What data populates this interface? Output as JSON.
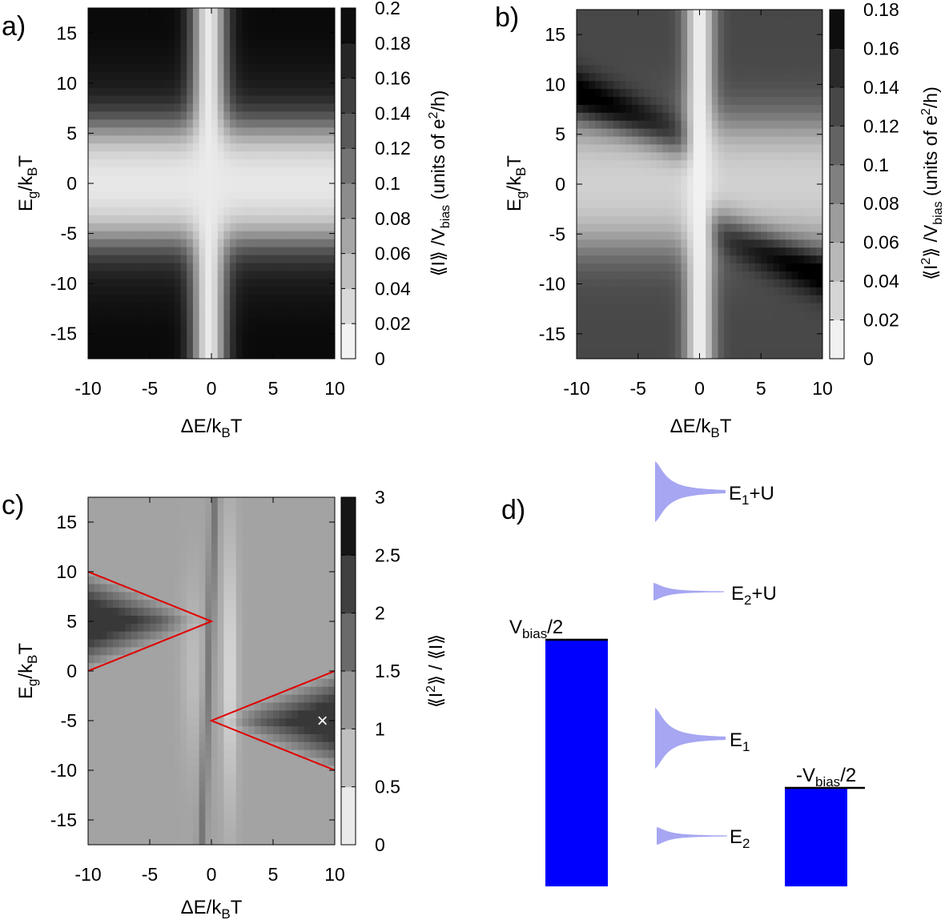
{
  "chart_data": [
    {
      "id": "a",
      "type": "heatmap",
      "panel_label": "a)",
      "xlabel": "ΔE/k_BT",
      "ylabel": "E_g/k_BT",
      "colorbar_label": "⟪ I ⟫ /V_bias (units of e²/h)",
      "xlim": [
        -10,
        10
      ],
      "ylim": [
        -17.5,
        17.5
      ],
      "xticks": [
        -10,
        -5,
        0,
        5,
        10
      ],
      "yticks": [
        -15,
        -10,
        -5,
        0,
        5,
        10,
        15
      ],
      "crange": [
        0,
        0.2
      ],
      "cticks": [
        "0",
        "0.02",
        "0.04",
        "0.06",
        "0.08",
        "0.1",
        "0.12",
        "0.14",
        "0.16",
        "0.18",
        "0.2"
      ],
      "cticks_values": [
        0,
        0.02,
        0.04,
        0.06,
        0.08,
        0.1,
        0.12,
        0.14,
        0.16,
        0.18,
        0.2
      ],
      "palette": "white-to-black",
      "features": [
        {
          "kind": "dark lobes",
          "description": "large values at |E_g| > 5 on both sides of ΔE = 0, max ~0.2 near corners"
        },
        {
          "kind": "bright line",
          "description": "minimum near ΔE = 0"
        }
      ]
    },
    {
      "id": "b",
      "type": "heatmap",
      "panel_label": "b)",
      "xlabel": "ΔE/k_BT",
      "ylabel": "E_g/k_BT",
      "colorbar_label": "⟪ I² ⟫ /V_bias (units of e²/h)",
      "xlim": [
        -10,
        10
      ],
      "ylim": [
        -17.5,
        17.5
      ],
      "xticks": [
        -10,
        -5,
        0,
        5,
        10
      ],
      "yticks": [
        -15,
        -10,
        -5,
        0,
        5,
        10,
        15
      ],
      "crange": [
        0,
        0.18
      ],
      "cticks": [
        "0",
        "0.02",
        "0.04",
        "0.06",
        "0.08",
        "0.1",
        "0.12",
        "0.14",
        "0.16",
        "0.18"
      ],
      "cticks_values": [
        0,
        0.02,
        0.04,
        0.06,
        0.08,
        0.1,
        0.12,
        0.14,
        0.16,
        0.18
      ],
      "palette": "white-to-black",
      "features": [
        {
          "kind": "dark band",
          "description": "diagonal maximum from (-10, 9) toward (-1, 4)"
        },
        {
          "kind": "dark band",
          "description": "diagonal maximum from (1, -4) toward (10, -9)"
        },
        {
          "kind": "bright line",
          "description": "minimum near ΔE = 0"
        }
      ]
    },
    {
      "id": "c",
      "type": "heatmap",
      "panel_label": "c)",
      "xlabel": "ΔE/k_BT",
      "ylabel": "E_g/k_BT",
      "colorbar_label": "⟪ I² ⟫ / ⟪ I ⟫",
      "xlim": [
        -10,
        10
      ],
      "ylim": [
        -17.5,
        17.5
      ],
      "xticks": [
        -10,
        -5,
        0,
        5,
        10
      ],
      "yticks": [
        -15,
        -10,
        -5,
        0,
        5,
        10,
        15
      ],
      "crange": [
        0,
        3
      ],
      "cticks": [
        "0",
        "0.5",
        "1",
        "1.5",
        "2",
        "2.5",
        "3"
      ],
      "cticks_values": [
        0,
        0.5,
        1,
        1.5,
        2,
        2.5,
        3
      ],
      "palette": "white-to-black",
      "overlay_lines": [
        {
          "color": "#e00000",
          "points": [
            [
              -10,
              10
            ],
            [
              0,
              5
            ],
            [
              -10,
              0
            ]
          ]
        },
        {
          "color": "#e00000",
          "points": [
            [
              10,
              0
            ],
            [
              0,
              -5
            ],
            [
              10,
              -10
            ]
          ]
        }
      ],
      "marker": {
        "symbol": "×",
        "x": 9,
        "y": -5,
        "color": "#ffffff"
      }
    }
  ],
  "diagram_d": {
    "panel_label": "d)",
    "left_lead_label": "V_bias/2",
    "right_lead_label": "-V_bias/2",
    "lead_color": "#0000ff",
    "level_color": "#a6a6f2",
    "levels": [
      {
        "label_main": "E",
        "label_sub": "1",
        "label_suffix": "+U",
        "size": "large"
      },
      {
        "label_main": "E",
        "label_sub": "2",
        "label_suffix": "+U",
        "size": "small"
      },
      {
        "label_main": "E",
        "label_sub": "1",
        "label_suffix": "",
        "size": "large"
      },
      {
        "label_main": "E",
        "label_sub": "2",
        "label_suffix": "",
        "size": "small"
      }
    ]
  }
}
